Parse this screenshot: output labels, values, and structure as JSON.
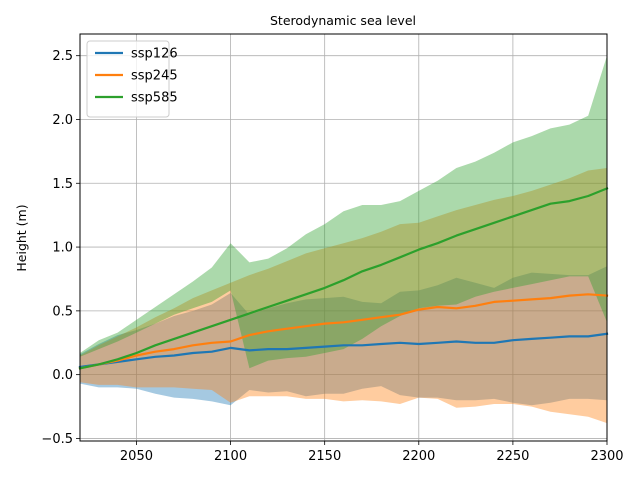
{
  "chart_data": {
    "type": "area",
    "title": "Sterodynamic sea level",
    "xlabel": "",
    "ylabel": "Height (m)",
    "xlim": [
      2020,
      2300
    ],
    "ylim": [
      -0.52,
      2.67
    ],
    "grid": true,
    "legend_position": "top-left",
    "x_ticks": [
      2050,
      2100,
      2150,
      2200,
      2250,
      2300
    ],
    "x_tick_labels": [
      "2050",
      "2100",
      "2150",
      "2200",
      "2250",
      "2300"
    ],
    "y_ticks": [
      -0.5,
      0.0,
      0.5,
      1.0,
      1.5,
      2.0,
      2.5
    ],
    "y_tick_labels": [
      "−0.5",
      "0.0",
      "0.5",
      "1.0",
      "1.5",
      "2.0",
      "2.5"
    ],
    "x": [
      2020,
      2030,
      2040,
      2050,
      2060,
      2070,
      2080,
      2090,
      2100,
      2110,
      2120,
      2130,
      2140,
      2150,
      2160,
      2170,
      2180,
      2190,
      2200,
      2210,
      2220,
      2230,
      2240,
      2250,
      2260,
      2270,
      2280,
      2290,
      2300
    ],
    "series": [
      {
        "name": "ssp126",
        "color": "#1f77b4",
        "values": [
          0.06,
          0.08,
          0.1,
          0.12,
          0.14,
          0.15,
          0.17,
          0.18,
          0.21,
          0.19,
          0.2,
          0.2,
          0.21,
          0.22,
          0.23,
          0.23,
          0.24,
          0.25,
          0.24,
          0.25,
          0.26,
          0.25,
          0.25,
          0.27,
          0.28,
          0.29,
          0.3,
          0.3,
          0.32
        ],
        "lower": [
          -0.07,
          -0.1,
          -0.1,
          -0.11,
          -0.15,
          -0.18,
          -0.19,
          -0.21,
          -0.24,
          -0.12,
          -0.14,
          -0.13,
          -0.17,
          -0.15,
          -0.15,
          -0.11,
          -0.09,
          -0.16,
          -0.18,
          -0.18,
          -0.2,
          -0.2,
          -0.19,
          -0.22,
          -0.24,
          -0.22,
          -0.19,
          -0.19,
          -0.2
        ],
        "upper": [
          0.16,
          0.24,
          0.31,
          0.35,
          0.4,
          0.46,
          0.5,
          0.55,
          0.64,
          0.47,
          0.52,
          0.56,
          0.59,
          0.6,
          0.61,
          0.57,
          0.56,
          0.65,
          0.66,
          0.7,
          0.76,
          0.72,
          0.68,
          0.76,
          0.8,
          0.79,
          0.78,
          0.78,
          0.85
        ]
      },
      {
        "name": "ssp245",
        "color": "#ff7f0e",
        "values": [
          0.05,
          0.08,
          0.11,
          0.15,
          0.18,
          0.2,
          0.23,
          0.25,
          0.26,
          0.31,
          0.34,
          0.36,
          0.38,
          0.4,
          0.41,
          0.43,
          0.45,
          0.47,
          0.51,
          0.53,
          0.52,
          0.54,
          0.57,
          0.58,
          0.59,
          0.6,
          0.62,
          0.63,
          0.62
        ],
        "lower": [
          -0.06,
          -0.08,
          -0.08,
          -0.1,
          -0.1,
          -0.1,
          -0.11,
          -0.12,
          -0.22,
          -0.17,
          -0.17,
          -0.17,
          -0.19,
          -0.19,
          -0.21,
          -0.2,
          -0.21,
          -0.23,
          -0.18,
          -0.19,
          -0.26,
          -0.25,
          -0.23,
          -0.23,
          -0.25,
          -0.29,
          -0.31,
          -0.33,
          -0.38
        ],
        "upper": [
          0.15,
          0.23,
          0.3,
          0.37,
          0.45,
          0.52,
          0.6,
          0.66,
          0.72,
          0.78,
          0.83,
          0.89,
          0.95,
          0.99,
          1.03,
          1.07,
          1.12,
          1.18,
          1.19,
          1.24,
          1.29,
          1.33,
          1.37,
          1.4,
          1.44,
          1.49,
          1.54,
          1.6,
          1.62
        ]
      },
      {
        "name": "ssp585",
        "color": "#2ca02c",
        "values": [
          0.05,
          0.08,
          0.12,
          0.17,
          0.23,
          0.28,
          0.33,
          0.38,
          0.43,
          0.48,
          0.53,
          0.58,
          0.63,
          0.68,
          0.74,
          0.81,
          0.86,
          0.92,
          0.98,
          1.03,
          1.09,
          1.14,
          1.19,
          1.24,
          1.29,
          1.34,
          1.36,
          1.4,
          1.46
        ],
        "lower": [
          0.14,
          0.2,
          0.26,
          0.33,
          0.4,
          0.47,
          0.52,
          0.57,
          0.66,
          0.05,
          0.11,
          0.13,
          0.14,
          0.17,
          0.2,
          0.28,
          0.38,
          0.46,
          0.52,
          0.54,
          0.55,
          0.61,
          0.65,
          0.68,
          0.71,
          0.74,
          0.77,
          0.77,
          0.41
        ],
        "upper": [
          0.17,
          0.27,
          0.33,
          0.43,
          0.53,
          0.63,
          0.73,
          0.84,
          1.03,
          0.88,
          0.91,
          0.99,
          1.1,
          1.18,
          1.28,
          1.33,
          1.33,
          1.36,
          1.44,
          1.52,
          1.62,
          1.67,
          1.74,
          1.82,
          1.87,
          1.93,
          1.96,
          2.03,
          2.5
        ]
      }
    ]
  }
}
